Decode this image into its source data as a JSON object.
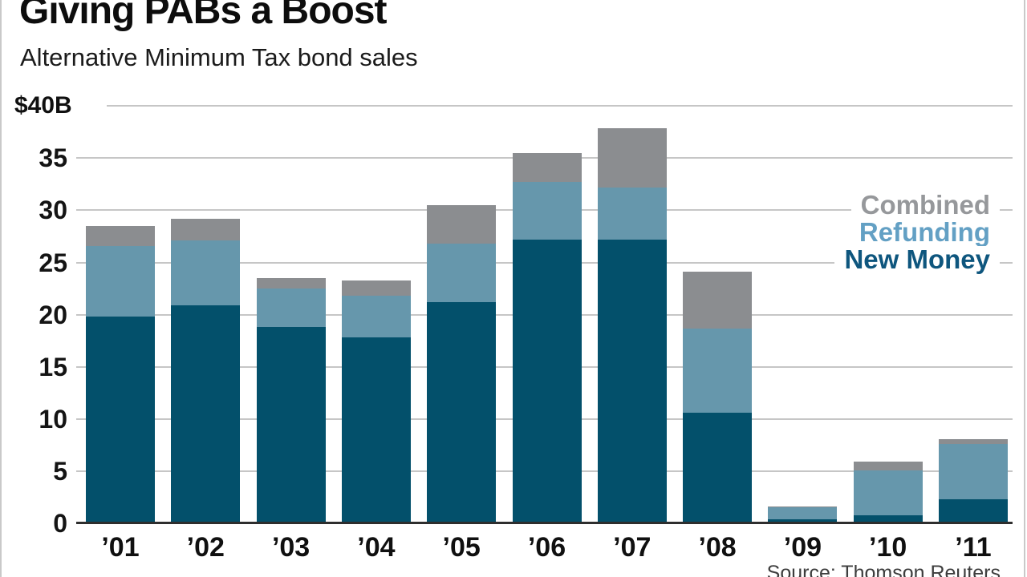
{
  "title": "Giving PABs a Boost",
  "subtitle": "Alternative Minimum Tax bond sales",
  "source": "Source: Thomson Reuters",
  "y_axis": {
    "top_label": "$40B",
    "ticks": [
      35,
      30,
      25,
      20,
      15,
      10,
      5,
      0
    ]
  },
  "legend": [
    {
      "label": "Combined",
      "color": "#96989b"
    },
    {
      "label": "Refunding",
      "color": "#63a0c4"
    },
    {
      "label": "New Money",
      "color": "#0e567e"
    }
  ],
  "chart_data": {
    "type": "bar",
    "stacked": true,
    "title": "Giving PABs a Boost",
    "subtitle": "Alternative Minimum Tax bond sales",
    "unit": "USD billions",
    "ylabel": "$40B",
    "ylim": [
      0,
      40
    ],
    "grid": true,
    "legend_position": "right",
    "categories": [
      "’01",
      "’02",
      "’03",
      "’04",
      "’05",
      "’06",
      "’07",
      "’08",
      "’09",
      "’10",
      "’11"
    ],
    "series": [
      {
        "name": "New Money",
        "color": "#03506b",
        "values": [
          19.8,
          20.9,
          18.8,
          17.8,
          21.2,
          27.2,
          27.2,
          10.6,
          0.4,
          0.8,
          2.3
        ]
      },
      {
        "name": "Refunding",
        "color": "#6697ac",
        "values": [
          6.8,
          6.2,
          3.7,
          4.0,
          5.6,
          5.5,
          5.0,
          8.1,
          1.1,
          4.3,
          5.3
        ]
      },
      {
        "name": "Combined",
        "color": "#8b8d90",
        "values": [
          1.9,
          2.1,
          1.0,
          1.5,
          3.7,
          2.8,
          5.7,
          5.4,
          0.1,
          0.8,
          0.5
        ]
      }
    ],
    "totals": [
      28.5,
      29.2,
      23.5,
      23.3,
      30.5,
      35.5,
      37.9,
      24.1,
      1.6,
      5.9,
      8.1
    ]
  }
}
